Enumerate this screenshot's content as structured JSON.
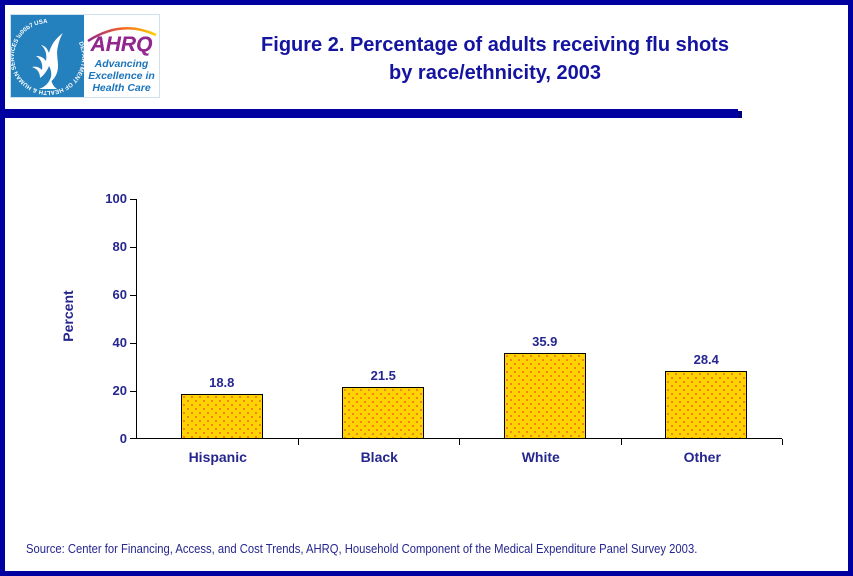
{
  "header": {
    "logo": {
      "hhs_ring_text": "DEPARTMENT OF HEALTH & HUMAN SERVICES · USA",
      "ahrq_acronym": "AHRQ",
      "tagline_line1": "Advancing",
      "tagline_line2": "Excellence in",
      "tagline_line3": "Health Care"
    },
    "title_line1": "Figure 2. Percentage of adults receiving flu shots",
    "title_line2": "by race/ethnicity, 2003"
  },
  "chart_data": {
    "type": "bar",
    "title": "Figure 2. Percentage of adults receiving flu shots by race/ethnicity, 2003",
    "categories": [
      "Hispanic",
      "Black",
      "White",
      "Other"
    ],
    "values": [
      18.8,
      21.5,
      35.9,
      28.4
    ],
    "value_labels": [
      "18.8",
      "21.5",
      "35.9",
      "28.4"
    ],
    "xlabel": "",
    "ylabel": "Percent",
    "ylim": [
      0,
      100
    ],
    "yticks": [
      0,
      20,
      40,
      60,
      80,
      100
    ],
    "grid": "off",
    "legend": "none",
    "bar_color": "#FFD300",
    "bar_dot_color": "#F4801F",
    "bar_border_color": "#000000",
    "label_color": "#26268F"
  },
  "footer": {
    "source": "Source: Center for Financing, Access, and Cost Trends, AHRQ, Household Component of the Medical Expenditure Panel Survey 2003."
  },
  "colors": {
    "frame": "#0000A0",
    "header_rule": "#0000A0",
    "title_text": "#1414A0",
    "hhs_blue": "#2580BE",
    "ahrq_purple": "#92278F",
    "tagline_blue": "#1B75BC"
  }
}
